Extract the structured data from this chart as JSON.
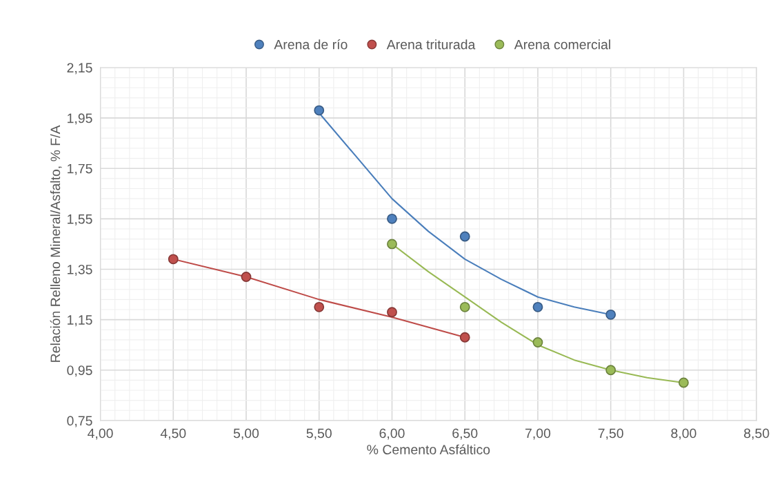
{
  "chart_data": {
    "type": "scatter",
    "xlabel": "% Cemento Asfáltico",
    "ylabel": "Relación Relleno Mineral/Asfalto, % F/A",
    "xlim": [
      4.0,
      8.5
    ],
    "ylim": [
      0.75,
      2.15
    ],
    "xticks": [
      {
        "value": 4.0,
        "label": "4,00"
      },
      {
        "value": 4.5,
        "label": "4,50"
      },
      {
        "value": 5.0,
        "label": "5,00"
      },
      {
        "value": 5.5,
        "label": "5,50"
      },
      {
        "value": 6.0,
        "label": "6,00"
      },
      {
        "value": 6.5,
        "label": "6,50"
      },
      {
        "value": 7.0,
        "label": "7,00"
      },
      {
        "value": 7.5,
        "label": "7,50"
      },
      {
        "value": 8.0,
        "label": "8,00"
      },
      {
        "value": 8.5,
        "label": "8,50"
      }
    ],
    "yticks": [
      {
        "value": 0.75,
        "label": "0,75"
      },
      {
        "value": 0.95,
        "label": "0,95"
      },
      {
        "value": 1.15,
        "label": "1,15"
      },
      {
        "value": 1.35,
        "label": "1,35"
      },
      {
        "value": 1.55,
        "label": "1,55"
      },
      {
        "value": 1.75,
        "label": "1,75"
      },
      {
        "value": 1.95,
        "label": "1,95"
      },
      {
        "value": 2.15,
        "label": "2,15"
      }
    ],
    "grid": true,
    "legend": "top",
    "marker": "circle",
    "series": [
      {
        "type": "line",
        "marker": "none",
        "color": "#4a7ebb",
        "x": [
          5.5,
          5.75,
          6.0,
          6.25,
          6.5,
          6.75,
          7.0,
          7.25,
          7.5
        ],
        "values": [
          1.97,
          1.8,
          1.63,
          1.5,
          1.39,
          1.31,
          1.24,
          1.2,
          1.17
        ]
      },
      {
        "type": "line",
        "marker": "none",
        "color": "#be4b48",
        "x": [
          4.5,
          5.0,
          5.5,
          6.0,
          6.5
        ],
        "values": [
          1.39,
          1.32,
          1.23,
          1.16,
          1.08
        ]
      },
      {
        "type": "line",
        "marker": "none",
        "color": "#98b954",
        "x": [
          6.0,
          6.25,
          6.5,
          6.75,
          7.0,
          7.25,
          7.5,
          7.75,
          8.0
        ],
        "values": [
          1.45,
          1.34,
          1.24,
          1.14,
          1.05,
          0.99,
          0.95,
          0.92,
          0.9
        ]
      },
      {
        "name": "Arena de río",
        "color": "#4f81bd",
        "x": [
          5.5,
          6.0,
          6.5,
          7.0,
          7.5
        ],
        "values": [
          1.98,
          1.55,
          1.48,
          1.2,
          1.17
        ]
      },
      {
        "name": "Arena triturada",
        "color": "#c0504d",
        "x": [
          4.5,
          5.0,
          5.5,
          6.0,
          6.5
        ],
        "values": [
          1.39,
          1.32,
          1.2,
          1.18,
          1.08
        ]
      },
      {
        "name": "Arena comercial",
        "color": "#9bbb59",
        "x": [
          6.0,
          6.5,
          7.0,
          7.5,
          8.0
        ],
        "values": [
          1.45,
          1.2,
          1.06,
          0.95,
          0.9
        ]
      }
    ]
  }
}
